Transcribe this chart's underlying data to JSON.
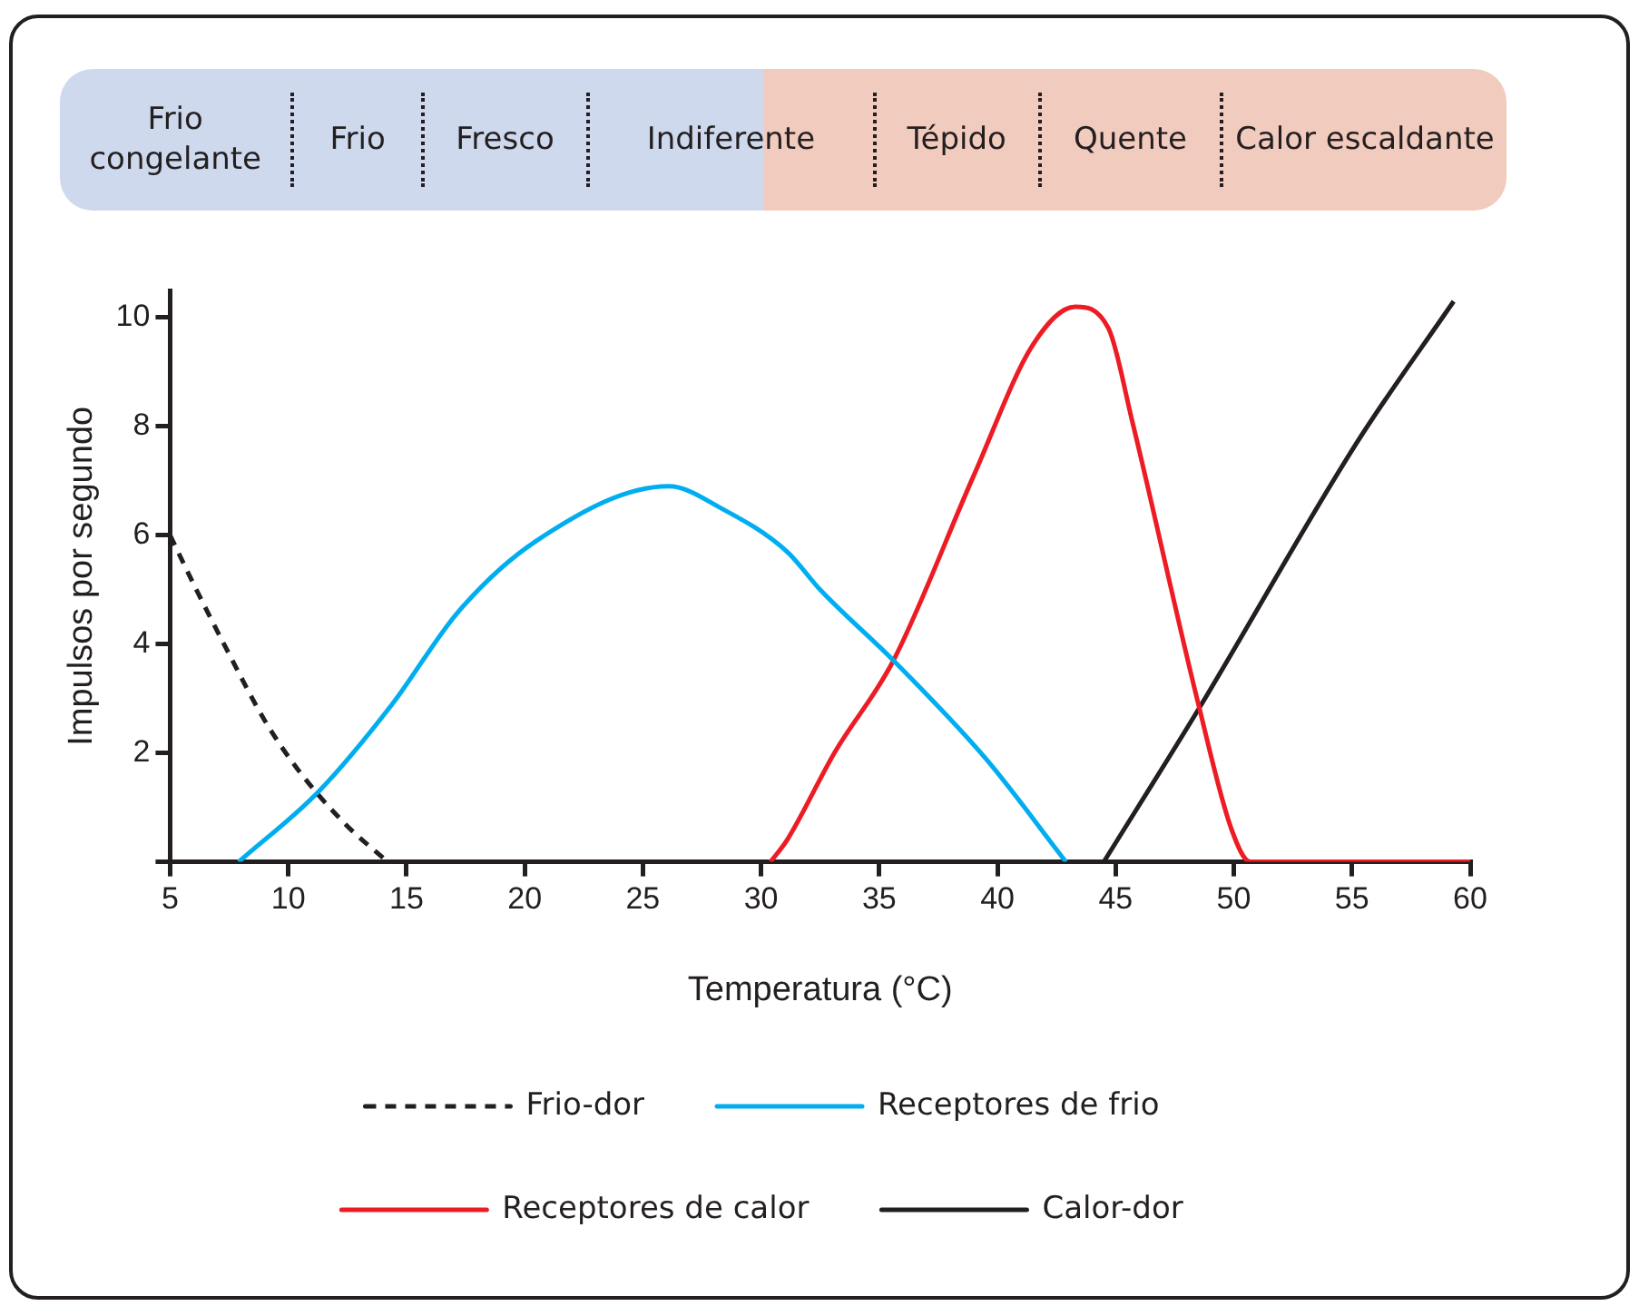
{
  "chart_data": {
    "type": "line",
    "xlabel": "Temperatura (°C)",
    "ylabel": "Impulsos por segundo",
    "annotations": [
      "Frio congelante",
      "Frio",
      "Fresco",
      "Indiferente",
      "Tépido",
      "Quente",
      "Calor escaldante"
    ],
    "xlim": [
      5,
      60
    ],
    "xticks": [
      5,
      10,
      15,
      20,
      25,
      30,
      35,
      40,
      45,
      50,
      55,
      60
    ],
    "ylim": [
      0,
      10.5
    ],
    "yticks": [
      {
        "value": 0,
        "label": null
      },
      2,
      4,
      6,
      8,
      10
    ],
    "grid": false,
    "legend": "bottom",
    "series": [
      {
        "name": "Frio-dor",
        "color": "#231f20",
        "line_style": "dashed",
        "x": [
          5,
          6,
          7.4,
          9,
          10.4,
          12.4,
          14.2
        ],
        "values": [
          6,
          5.1,
          3.9,
          2.6,
          1.7,
          0.7,
          0
        ]
      },
      {
        "name": "Receptores de frio",
        "color": "#00aeef",
        "x": [
          7.9,
          11.3,
          14.4,
          17.2,
          20.5,
          26.1,
          28.3,
          31.1,
          32.5,
          35.6,
          39.5,
          42.9
        ],
        "values": [
          0,
          1.3,
          2.9,
          4.6,
          5.9,
          6.9,
          6.5,
          5.7,
          5.0,
          3.7,
          1.9,
          0
        ]
      },
      {
        "name": "Receptores de calor",
        "color": "#ed1c24",
        "x": [
          30.4,
          31.1,
          33.1,
          35.6,
          39,
          41.5,
          43.3,
          44.7,
          45.7,
          48.5,
          49.9,
          50.7,
          60
        ],
        "values": [
          0,
          0.4,
          2,
          3.7,
          7.1,
          9.5,
          10.2,
          9.8,
          8.1,
          2.9,
          0.6,
          0,
          0
        ]
      },
      {
        "name": "Calor-dor",
        "color": "#231f20",
        "x": [
          44.5,
          48.5,
          55.2,
          59.3
        ],
        "values": [
          0,
          2.8,
          7.7,
          10.3
        ]
      }
    ]
  }
}
